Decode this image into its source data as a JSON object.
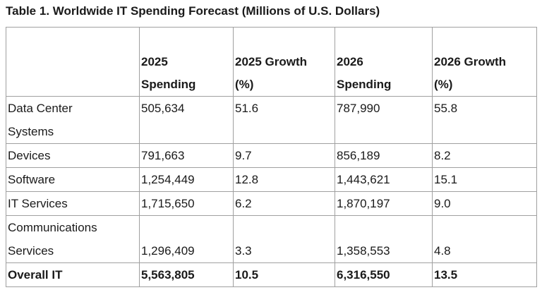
{
  "title": "Table 1. Worldwide IT Spending Forecast (Millions of U.S. Dollars)",
  "table": {
    "header": [
      [],
      [
        "2025",
        "Spending"
      ],
      [
        "2025 Growth",
        "(%)"
      ],
      [
        "2026",
        "Spending"
      ],
      [
        "2026 Growth",
        "(%)"
      ]
    ],
    "rows": [
      [
        [
          "Data Center",
          "Systems"
        ],
        "505,634",
        "51.6",
        "787,990",
        "55.8"
      ],
      [
        [
          "Devices"
        ],
        "791,663",
        "9.7",
        "856,189",
        "8.2"
      ],
      [
        [
          "Software"
        ],
        "1,254,449",
        "12.8",
        "1,443,621",
        "15.1"
      ],
      [
        [
          "IT Services"
        ],
        "1,715,650",
        "6.2",
        "1,870,197",
        "9.0"
      ],
      [
        [
          "Communications",
          "Services"
        ],
        "1,296,409",
        "3.3",
        "1,358,553",
        "4.8"
      ],
      [
        [
          "Overall IT"
        ],
        "5,563,805",
        "10.5",
        "6,316,550",
        "13.5"
      ]
    ]
  }
}
